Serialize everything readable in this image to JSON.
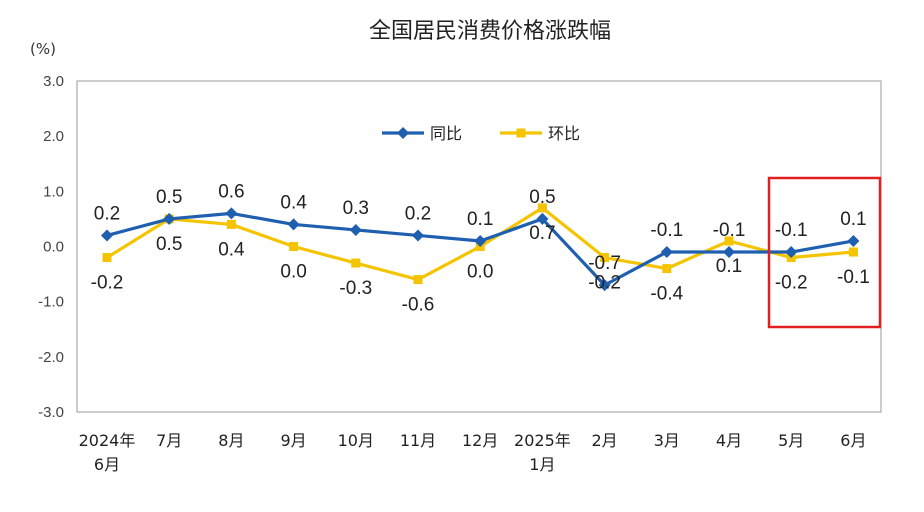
{
  "chart_data": {
    "type": "line",
    "title": "全国居民消费价格涨跌幅",
    "unit": "(%)",
    "ylim": [
      -3.0,
      3.0
    ],
    "yticks": [
      "3.0",
      "2.0",
      "1.0",
      "0.0",
      "-1.0",
      "-2.0",
      "-3.0"
    ],
    "ytick_values": [
      3,
      2,
      1,
      0,
      -1,
      -2,
      -3
    ],
    "categories": [
      [
        "2024年",
        "6月"
      ],
      [
        "7月"
      ],
      [
        "8月"
      ],
      [
        "9月"
      ],
      [
        "10月"
      ],
      [
        "11月"
      ],
      [
        "12月"
      ],
      [
        "2025年",
        "1月"
      ],
      [
        "2月"
      ],
      [
        "3月"
      ],
      [
        "4月"
      ],
      [
        "5月"
      ],
      [
        "6月"
      ]
    ],
    "series": [
      {
        "name": "同比",
        "color": "#1f5fb0",
        "marker": "diamond",
        "values": [
          0.2,
          0.5,
          0.6,
          0.4,
          0.3,
          0.2,
          0.1,
          0.5,
          -0.7,
          -0.1,
          -0.1,
          -0.1,
          0.1
        ],
        "labels": [
          "0.2",
          "0.5",
          "0.6",
          "0.4",
          "0.3",
          "0.2",
          "0.1",
          "0.5",
          "-0.7",
          "-0.1",
          "-0.1",
          "-0.1",
          "0.1"
        ]
      },
      {
        "name": "环比",
        "color": "#f5c400",
        "marker": "square",
        "values": [
          -0.2,
          0.5,
          0.4,
          0.0,
          -0.3,
          -0.6,
          0.0,
          0.7,
          -0.2,
          -0.4,
          0.1,
          -0.2,
          -0.1
        ],
        "labels": [
          "-0.2",
          "0.5",
          "0.4",
          "0.0",
          "-0.3",
          "-0.6",
          "0.0",
          "0.7",
          "-0.2",
          "-0.4",
          "0.1",
          "-0.2",
          "-0.1"
        ]
      }
    ],
    "grid": false,
    "legend": "top-center",
    "highlight_color": "#e02020"
  }
}
